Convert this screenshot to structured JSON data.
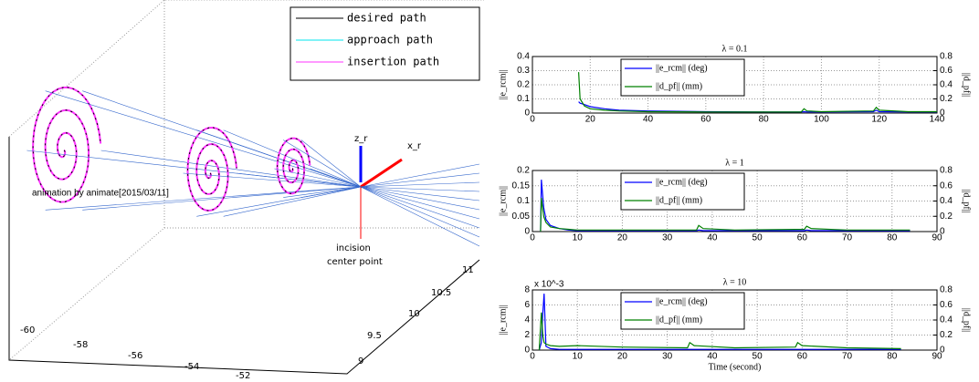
{
  "chart_data": [
    {
      "type": "line3d",
      "series": [
        {
          "name": "desired path",
          "color": "#000000"
        },
        {
          "name": "approach path",
          "color": "#00e5ee"
        },
        {
          "name": "insertion path",
          "color": "#ff33ff"
        }
      ],
      "annotations": [
        "z_r",
        "x_r",
        "incision",
        "center point",
        "animation by animate[2015/03/11]"
      ],
      "xticks": [
        -60,
        -58,
        -56,
        -54,
        -52
      ],
      "yticks": [
        9,
        9.5,
        10,
        10.5,
        11
      ]
    },
    {
      "type": "line",
      "title": "λ = 0.1",
      "ylabel": "||e_rcm||",
      "y2label": "||d_pf||",
      "xlim": [
        0,
        140
      ],
      "xticks": [
        0,
        20,
        40,
        60,
        80,
        100,
        120,
        140
      ],
      "ylim": [
        0,
        0.4
      ],
      "yticks": [
        0,
        0.1,
        0.2,
        0.3,
        0.4
      ],
      "y2lim": [
        0,
        0.8
      ],
      "y2ticks": [
        0,
        0.2,
        0.4,
        0.6,
        0.8
      ],
      "grid": true,
      "x": [
        16,
        16.5,
        18,
        20,
        25,
        30,
        40,
        60,
        80,
        93,
        94,
        95,
        100,
        118,
        119,
        120,
        130,
        140
      ],
      "series": [
        {
          "name": "||e_rcm|| (deg)",
          "color": "#0000ff",
          "values": [
            0.08,
            0.07,
            0.06,
            0.045,
            0.03,
            0.02,
            0.015,
            0.01,
            0.008,
            0.008,
            0.01,
            0.008,
            0.008,
            0.01,
            0.02,
            0.01,
            0.008,
            0.008
          ]
        },
        {
          "name": "||d_pf|| (mm)",
          "color": "#008000",
          "axis": "y2",
          "values": [
            0.58,
            0.2,
            0.1,
            0.06,
            0.04,
            0.03,
            0.02,
            0.015,
            0.015,
            0.015,
            0.06,
            0.03,
            0.02,
            0.03,
            0.08,
            0.04,
            0.02,
            0.02
          ]
        }
      ]
    },
    {
      "type": "line",
      "title": "λ = 1",
      "ylabel": "||e_rcm||",
      "y2label": "||d_pf||",
      "xlim": [
        0,
        90
      ],
      "xticks": [
        0,
        10,
        20,
        30,
        40,
        50,
        60,
        70,
        80,
        90
      ],
      "ylim": [
        0,
        0.2
      ],
      "yticks": [
        0,
        0.05,
        0.1,
        0.15,
        0.2
      ],
      "y2lim": [
        0,
        0.8
      ],
      "y2ticks": [
        0,
        0.2,
        0.4,
        0.6,
        0.8
      ],
      "grid": true,
      "x": [
        1.8,
        2,
        2.5,
        3,
        4,
        6,
        8,
        10,
        20,
        36.5,
        37,
        38,
        45,
        60.5,
        61,
        62,
        70,
        84
      ],
      "series": [
        {
          "name": "||e_rcm|| (deg)",
          "color": "#0000ff",
          "values": [
            0,
            0.17,
            0.08,
            0.04,
            0.02,
            0.01,
            0.005,
            0.003,
            0.003,
            0.003,
            0.005,
            0.003,
            0.003,
            0.003,
            0.005,
            0.003,
            0.003,
            0.003
          ]
        },
        {
          "name": "||d_pf|| (mm)",
          "color": "#008000",
          "axis": "y2",
          "values": [
            0,
            0.44,
            0.2,
            0.12,
            0.06,
            0.04,
            0.03,
            0.02,
            0.02,
            0.02,
            0.08,
            0.04,
            0.02,
            0.03,
            0.07,
            0.04,
            0.02,
            0.02
          ]
        }
      ]
    },
    {
      "type": "line",
      "title": "λ = 10",
      "ylabel": "||e_rcm||",
      "y2label": "||d_pf||",
      "yscale_label": "x 10^-3",
      "xlabel": "Time (second)",
      "xlim": [
        0,
        90
      ],
      "xticks": [
        0,
        10,
        20,
        30,
        40,
        50,
        60,
        70,
        80,
        90
      ],
      "ylim": [
        0,
        8
      ],
      "yticks": [
        0,
        2,
        4,
        6,
        8
      ],
      "y2lim": [
        0,
        0.8
      ],
      "y2ticks": [
        0,
        0.2,
        0.4,
        0.6,
        0.8
      ],
      "grid": true,
      "x": [
        1.5,
        2,
        2.3,
        2.6,
        3,
        4,
        6,
        10,
        20,
        34.5,
        35,
        36,
        45,
        58.5,
        59,
        60,
        70,
        82
      ],
      "series": [
        {
          "name": "||e_rcm|| (deg)",
          "color": "#0000ff",
          "values": [
            0,
            1,
            4.8,
            7.5,
            0.5,
            0.2,
            0.1,
            0.1,
            0.1,
            0.1,
            0.1,
            0.1,
            0.1,
            0.1,
            0.1,
            0.1,
            0.1,
            0.1
          ]
        },
        {
          "name": "||d_pf|| (mm)",
          "color": "#008000",
          "axis": "y2",
          "values": [
            0,
            0.5,
            0.2,
            0.1,
            0.08,
            0.06,
            0.05,
            0.06,
            0.04,
            0.03,
            0.1,
            0.06,
            0.03,
            0.04,
            0.1,
            0.06,
            0.03,
            0.02
          ]
        }
      ]
    }
  ]
}
